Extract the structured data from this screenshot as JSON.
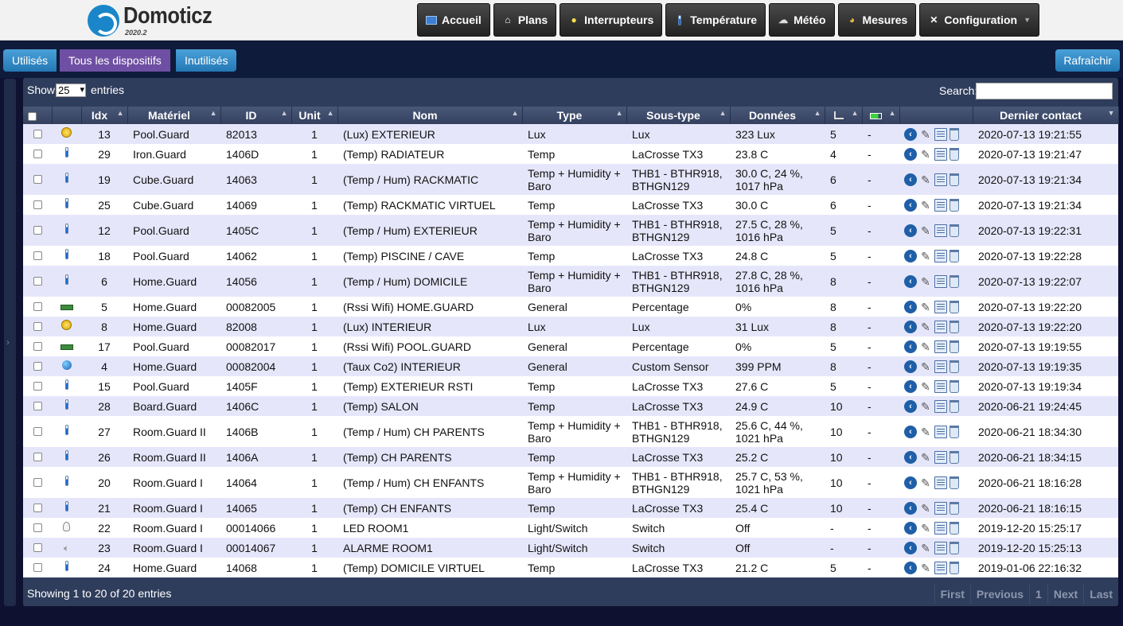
{
  "app": {
    "name": "Domoticz",
    "version": "2020.2"
  },
  "nav": [
    {
      "label": "Accueil",
      "icon": "home-dashboard-icon"
    },
    {
      "label": "Plans",
      "icon": "house-icon"
    },
    {
      "label": "Interrupteurs",
      "icon": "lightbulb-icon"
    },
    {
      "label": "Température",
      "icon": "thermometer-icon"
    },
    {
      "label": "Météo",
      "icon": "weather-cloud-icon"
    },
    {
      "label": "Mesures",
      "icon": "gauge-icon"
    },
    {
      "label": "Configuration",
      "icon": "tools-icon"
    }
  ],
  "filters": {
    "used": "Utilisés",
    "all": "Tous les dispositifs",
    "unused": "Inutilisés",
    "refresh": "Rafraîchir"
  },
  "table_controls": {
    "show": "Show",
    "page_size": "25",
    "entries": "entries",
    "search_label": "Search:",
    "search_value": ""
  },
  "columns": [
    "",
    "",
    "Idx",
    "Matériel",
    "ID",
    "Unit",
    "Nom",
    "Type",
    "Sous-type",
    "Données",
    "signal-icon",
    "battery-icon",
    "",
    "Dernier contact"
  ],
  "rows": [
    {
      "icon": "sun",
      "idx": "13",
      "hw": "Pool.Guard",
      "id": "82013",
      "unit": "1",
      "name": "(Lux) EXTERIEUR",
      "type": "Lux",
      "subtype": "Lux",
      "data": "323 Lux",
      "signal": "5",
      "battery": "-",
      "last": "2020-07-13 19:21:55"
    },
    {
      "icon": "therm",
      "idx": "29",
      "hw": "Iron.Guard",
      "id": "1406D",
      "unit": "1",
      "name": "(Temp) RADIATEUR",
      "type": "Temp",
      "subtype": "LaCrosse TX3",
      "data": "23.8 C",
      "signal": "4",
      "battery": "-",
      "last": "2020-07-13 19:21:47"
    },
    {
      "icon": "therm",
      "idx": "19",
      "hw": "Cube.Guard",
      "id": "14063",
      "unit": "1",
      "name": "(Temp / Hum) RACKMATIC",
      "type": "Temp + Humidity + Baro",
      "subtype": "THB1 - BTHR918, BTHGN129",
      "data": "30.0 C, 24 %, 1017 hPa",
      "signal": "6",
      "battery": "-",
      "last": "2020-07-13 19:21:34"
    },
    {
      "icon": "therm",
      "idx": "25",
      "hw": "Cube.Guard",
      "id": "14069",
      "unit": "1",
      "name": "(Temp) RACKMATIC VIRTUEL",
      "type": "Temp",
      "subtype": "LaCrosse TX3",
      "data": "30.0 C",
      "signal": "6",
      "battery": "-",
      "last": "2020-07-13 19:21:34"
    },
    {
      "icon": "therm",
      "idx": "12",
      "hw": "Pool.Guard",
      "id": "1405C",
      "unit": "1",
      "name": "(Temp / Hum) EXTERIEUR",
      "type": "Temp + Humidity + Baro",
      "subtype": "THB1 - BTHR918, BTHGN129",
      "data": "27.5 C, 28 %, 1016 hPa",
      "signal": "5",
      "battery": "-",
      "last": "2020-07-13 19:22:31"
    },
    {
      "icon": "therm",
      "idx": "18",
      "hw": "Pool.Guard",
      "id": "14062",
      "unit": "1",
      "name": "(Temp) PISCINE / CAVE",
      "type": "Temp",
      "subtype": "LaCrosse TX3",
      "data": "24.8 C",
      "signal": "5",
      "battery": "-",
      "last": "2020-07-13 19:22:28"
    },
    {
      "icon": "therm",
      "idx": "6",
      "hw": "Home.Guard",
      "id": "14056",
      "unit": "1",
      "name": "(Temp / Hum) DOMICILE",
      "type": "Temp + Humidity + Baro",
      "subtype": "THB1 - BTHR918, BTHGN129",
      "data": "27.8 C, 28 %, 1016 hPa",
      "signal": "8",
      "battery": "-",
      "last": "2020-07-13 19:22:07"
    },
    {
      "icon": "wifi",
      "idx": "5",
      "hw": "Home.Guard",
      "id": "00082005",
      "unit": "1",
      "name": "(Rssi Wifi) HOME.GUARD",
      "type": "General",
      "subtype": "Percentage",
      "data": "0%",
      "signal": "8",
      "battery": "-",
      "last": "2020-07-13 19:22:20"
    },
    {
      "icon": "sun",
      "idx": "8",
      "hw": "Home.Guard",
      "id": "82008",
      "unit": "1",
      "name": "(Lux) INTERIEUR",
      "type": "Lux",
      "subtype": "Lux",
      "data": "31 Lux",
      "signal": "8",
      "battery": "-",
      "last": "2020-07-13 19:22:20"
    },
    {
      "icon": "wifi",
      "idx": "17",
      "hw": "Pool.Guard",
      "id": "00082017",
      "unit": "1",
      "name": "(Rssi Wifi) POOL.GUARD",
      "type": "General",
      "subtype": "Percentage",
      "data": "0%",
      "signal": "5",
      "battery": "-",
      "last": "2020-07-13 19:19:55"
    },
    {
      "icon": "globe",
      "idx": "4",
      "hw": "Home.Guard",
      "id": "00082004",
      "unit": "1",
      "name": "(Taux Co2) INTERIEUR",
      "type": "General",
      "subtype": "Custom Sensor",
      "data": "399 PPM",
      "signal": "8",
      "battery": "-",
      "last": "2020-07-13 19:19:35"
    },
    {
      "icon": "therm",
      "idx": "15",
      "hw": "Pool.Guard",
      "id": "1405F",
      "unit": "1",
      "name": "(Temp) EXTERIEUR RSTI",
      "type": "Temp",
      "subtype": "LaCrosse TX3",
      "data": "27.6 C",
      "signal": "5",
      "battery": "-",
      "last": "2020-07-13 19:19:34"
    },
    {
      "icon": "therm",
      "idx": "28",
      "hw": "Board.Guard",
      "id": "1406C",
      "unit": "1",
      "name": "(Temp) SALON",
      "type": "Temp",
      "subtype": "LaCrosse TX3",
      "data": "24.9 C",
      "signal": "10",
      "battery": "-",
      "last": "2020-06-21 19:24:45"
    },
    {
      "icon": "therm",
      "idx": "27",
      "hw": "Room.Guard II",
      "id": "1406B",
      "unit": "1",
      "name": "(Temp / Hum) CH PARENTS",
      "type": "Temp + Humidity + Baro",
      "subtype": "THB1 - BTHR918, BTHGN129",
      "data": "25.6 C, 44 %, 1021 hPa",
      "signal": "10",
      "battery": "-",
      "last": "2020-06-21 18:34:30"
    },
    {
      "icon": "therm",
      "idx": "26",
      "hw": "Room.Guard II",
      "id": "1406A",
      "unit": "1",
      "name": "(Temp) CH PARENTS",
      "type": "Temp",
      "subtype": "LaCrosse TX3",
      "data": "25.2 C",
      "signal": "10",
      "battery": "-",
      "last": "2020-06-21 18:34:15"
    },
    {
      "icon": "therm",
      "idx": "20",
      "hw": "Room.Guard I",
      "id": "14064",
      "unit": "1",
      "name": "(Temp / Hum) CH ENFANTS",
      "type": "Temp + Humidity + Baro",
      "subtype": "THB1 - BTHR918, BTHGN129",
      "data": "25.7 C, 53 %, 1021 hPa",
      "signal": "10",
      "battery": "-",
      "last": "2020-06-21 18:16:28"
    },
    {
      "icon": "therm",
      "idx": "21",
      "hw": "Room.Guard I",
      "id": "14065",
      "unit": "1",
      "name": "(Temp) CH ENFANTS",
      "type": "Temp",
      "subtype": "LaCrosse TX3",
      "data": "25.4 C",
      "signal": "10",
      "battery": "-",
      "last": "2020-06-21 18:16:15"
    },
    {
      "icon": "bulb",
      "idx": "22",
      "hw": "Room.Guard I",
      "id": "00014066",
      "unit": "1",
      "name": "LED ROOM1",
      "type": "Light/Switch",
      "subtype": "Switch",
      "data": "Off",
      "signal": "-",
      "battery": "-",
      "last": "2019-12-20 15:25:17"
    },
    {
      "icon": "speaker",
      "idx": "23",
      "hw": "Room.Guard I",
      "id": "00014067",
      "unit": "1",
      "name": "ALARME ROOM1",
      "type": "Light/Switch",
      "subtype": "Switch",
      "data": "Off",
      "signal": "-",
      "battery": "-",
      "last": "2019-12-20 15:25:13"
    },
    {
      "icon": "therm",
      "idx": "24",
      "hw": "Home.Guard",
      "id": "14068",
      "unit": "1",
      "name": "(Temp) DOMICILE VIRTUEL",
      "type": "Temp",
      "subtype": "LaCrosse TX3",
      "data": "21.2 C",
      "signal": "5",
      "battery": "-",
      "last": "2019-01-06 22:16:32"
    }
  ],
  "footer": {
    "showing": "Showing 1 to 20 of 20 entries",
    "pager": [
      "First",
      "Previous",
      "1",
      "Next",
      "Last"
    ]
  }
}
